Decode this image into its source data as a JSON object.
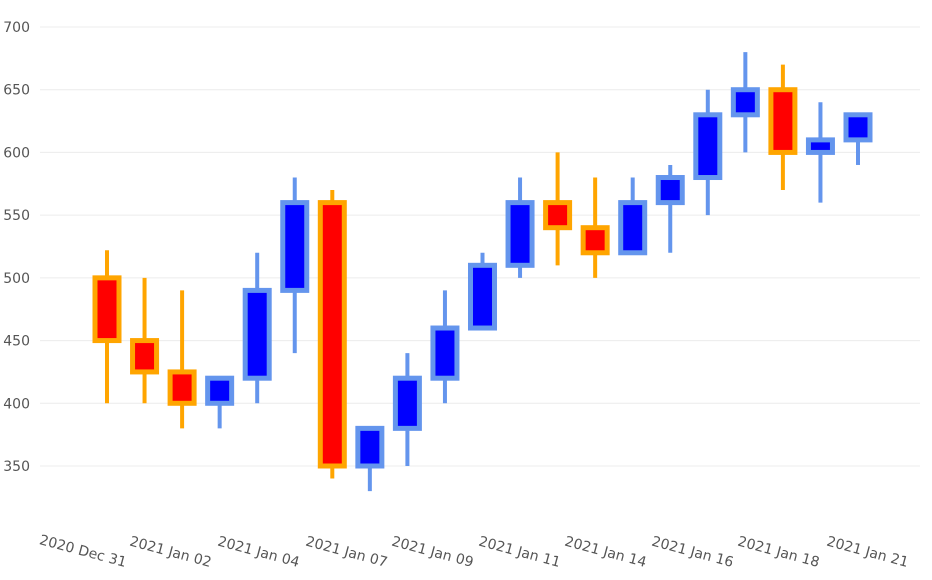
{
  "chart_data": {
    "type": "candlestick",
    "title": "",
    "xlabel": "",
    "ylabel": "",
    "ylim": [
      300,
      710
    ],
    "y_ticks": [
      350,
      400,
      450,
      500,
      550,
      600,
      650,
      700
    ],
    "x_tick_labels": [
      "2020 Dec 31",
      "2021 Jan 02",
      "2021 Jan 04",
      "2021 Jan 07",
      "2021 Jan 09",
      "2021 Jan 11",
      "2021 Jan 14",
      "2021 Jan 16",
      "2021 Jan 18",
      "2021 Jan 21"
    ],
    "grid": true,
    "legend": "none",
    "colors": {
      "decreasing_fill": "#ff0000",
      "decreasing_line": "#ffa500",
      "increasing_fill": "#0000ff",
      "increasing_line": "#6495ed",
      "grid": "#ececec"
    },
    "candles": [
      {
        "open": 500,
        "high": 522,
        "low": 400,
        "close": 450
      },
      {
        "open": 450,
        "high": 500,
        "low": 400,
        "close": 425
      },
      {
        "open": 425,
        "high": 490,
        "low": 380,
        "close": 400
      },
      {
        "open": 400,
        "high": 420,
        "low": 380,
        "close": 420
      },
      {
        "open": 420,
        "high": 520,
        "low": 400,
        "close": 490
      },
      {
        "open": 490,
        "high": 580,
        "low": 440,
        "close": 560
      },
      {
        "open": 560,
        "high": 570,
        "low": 340,
        "close": 350
      },
      {
        "open": 350,
        "high": 380,
        "low": 330,
        "close": 380
      },
      {
        "open": 380,
        "high": 440,
        "low": 350,
        "close": 420
      },
      {
        "open": 420,
        "high": 490,
        "low": 400,
        "close": 460
      },
      {
        "open": 460,
        "high": 520,
        "low": 460,
        "close": 510
      },
      {
        "open": 510,
        "high": 580,
        "low": 500,
        "close": 560
      },
      {
        "open": 560,
        "high": 600,
        "low": 510,
        "close": 540
      },
      {
        "open": 540,
        "high": 580,
        "low": 500,
        "close": 520
      },
      {
        "open": 520,
        "high": 580,
        "low": 520,
        "close": 560
      },
      {
        "open": 560,
        "high": 590,
        "low": 520,
        "close": 580
      },
      {
        "open": 580,
        "high": 650,
        "low": 550,
        "close": 630
      },
      {
        "open": 630,
        "high": 680,
        "low": 600,
        "close": 650
      },
      {
        "open": 650,
        "high": 670,
        "low": 570,
        "close": 600
      },
      {
        "open": 600,
        "high": 640,
        "low": 560,
        "close": 610
      },
      {
        "open": 610,
        "high": 630,
        "low": 590,
        "close": 630
      }
    ]
  }
}
